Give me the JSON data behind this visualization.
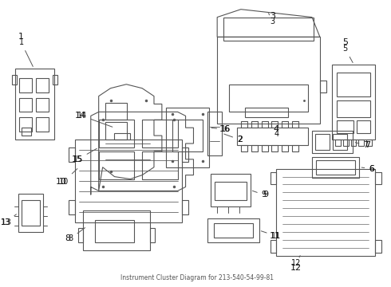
{
  "title": "Instrument Cluster Diagram for 213-540-54-99-81",
  "bg_color": "#ffffff",
  "line_color": "#555555",
  "label_color": "#111111"
}
